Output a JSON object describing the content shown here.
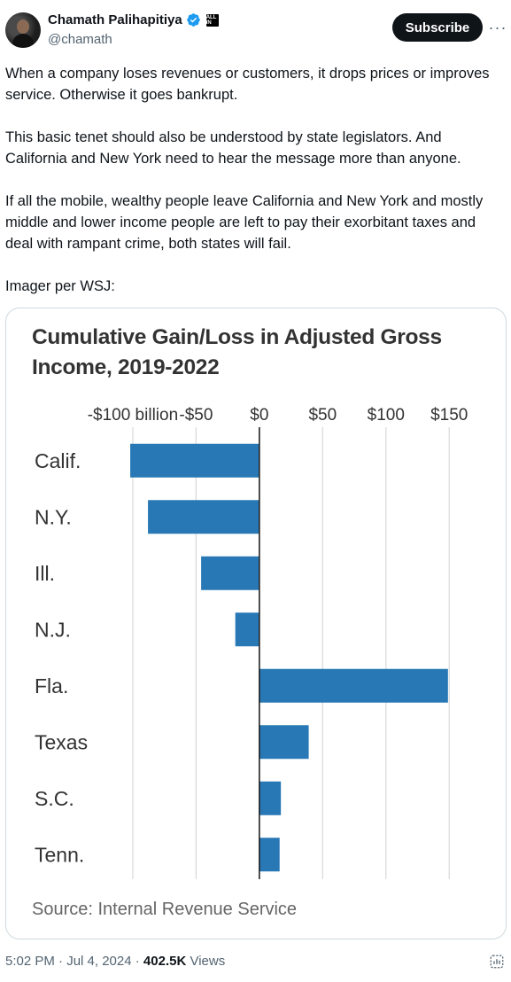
{
  "author": {
    "name": "Chamath Palihapitiya",
    "handle": "@chamath",
    "badge_text": "ALL IN"
  },
  "actions": {
    "subscribe_label": "Subscribe",
    "more_label": "···"
  },
  "tweet": {
    "paragraphs": [
      "When a company loses revenues or customers, it drops prices or improves service. Otherwise it goes bankrupt.",
      "This basic tenet should also be understood by state legislators. And California and New York need to hear the message more than anyone.",
      "If all the mobile, wealthy people leave California and New York and mostly middle and lower income people are left to pay their exorbitant taxes and deal with rampant crime, both states will fail.",
      "Imager per WSJ:"
    ]
  },
  "chart_data": {
    "type": "bar",
    "orientation": "horizontal",
    "title": "Cumulative Gain/Loss in Adjusted Gross Income, 2019-2022",
    "source": "Source: Internal Revenue Service",
    "categories": [
      "Calif.",
      "N.Y.",
      "Ill.",
      "N.J.",
      "Fla.",
      "Texas",
      "S.C.",
      "Tenn."
    ],
    "values": [
      -102,
      -88,
      -46,
      -19,
      149,
      39,
      17,
      16
    ],
    "x_ticks": [
      -100,
      -50,
      0,
      50,
      100,
      150
    ],
    "x_tick_labels": [
      "-$100 billion",
      "-$50",
      "$0",
      "$50",
      "$100",
      "$150"
    ],
    "xlim": [
      -200,
      196
    ],
    "grid": true,
    "bar_color": "#2878b5"
  },
  "footer": {
    "time": "5:02 PM · Jul 4, 2024 · ",
    "views_count": "402.5K",
    "views_label": " Views"
  }
}
